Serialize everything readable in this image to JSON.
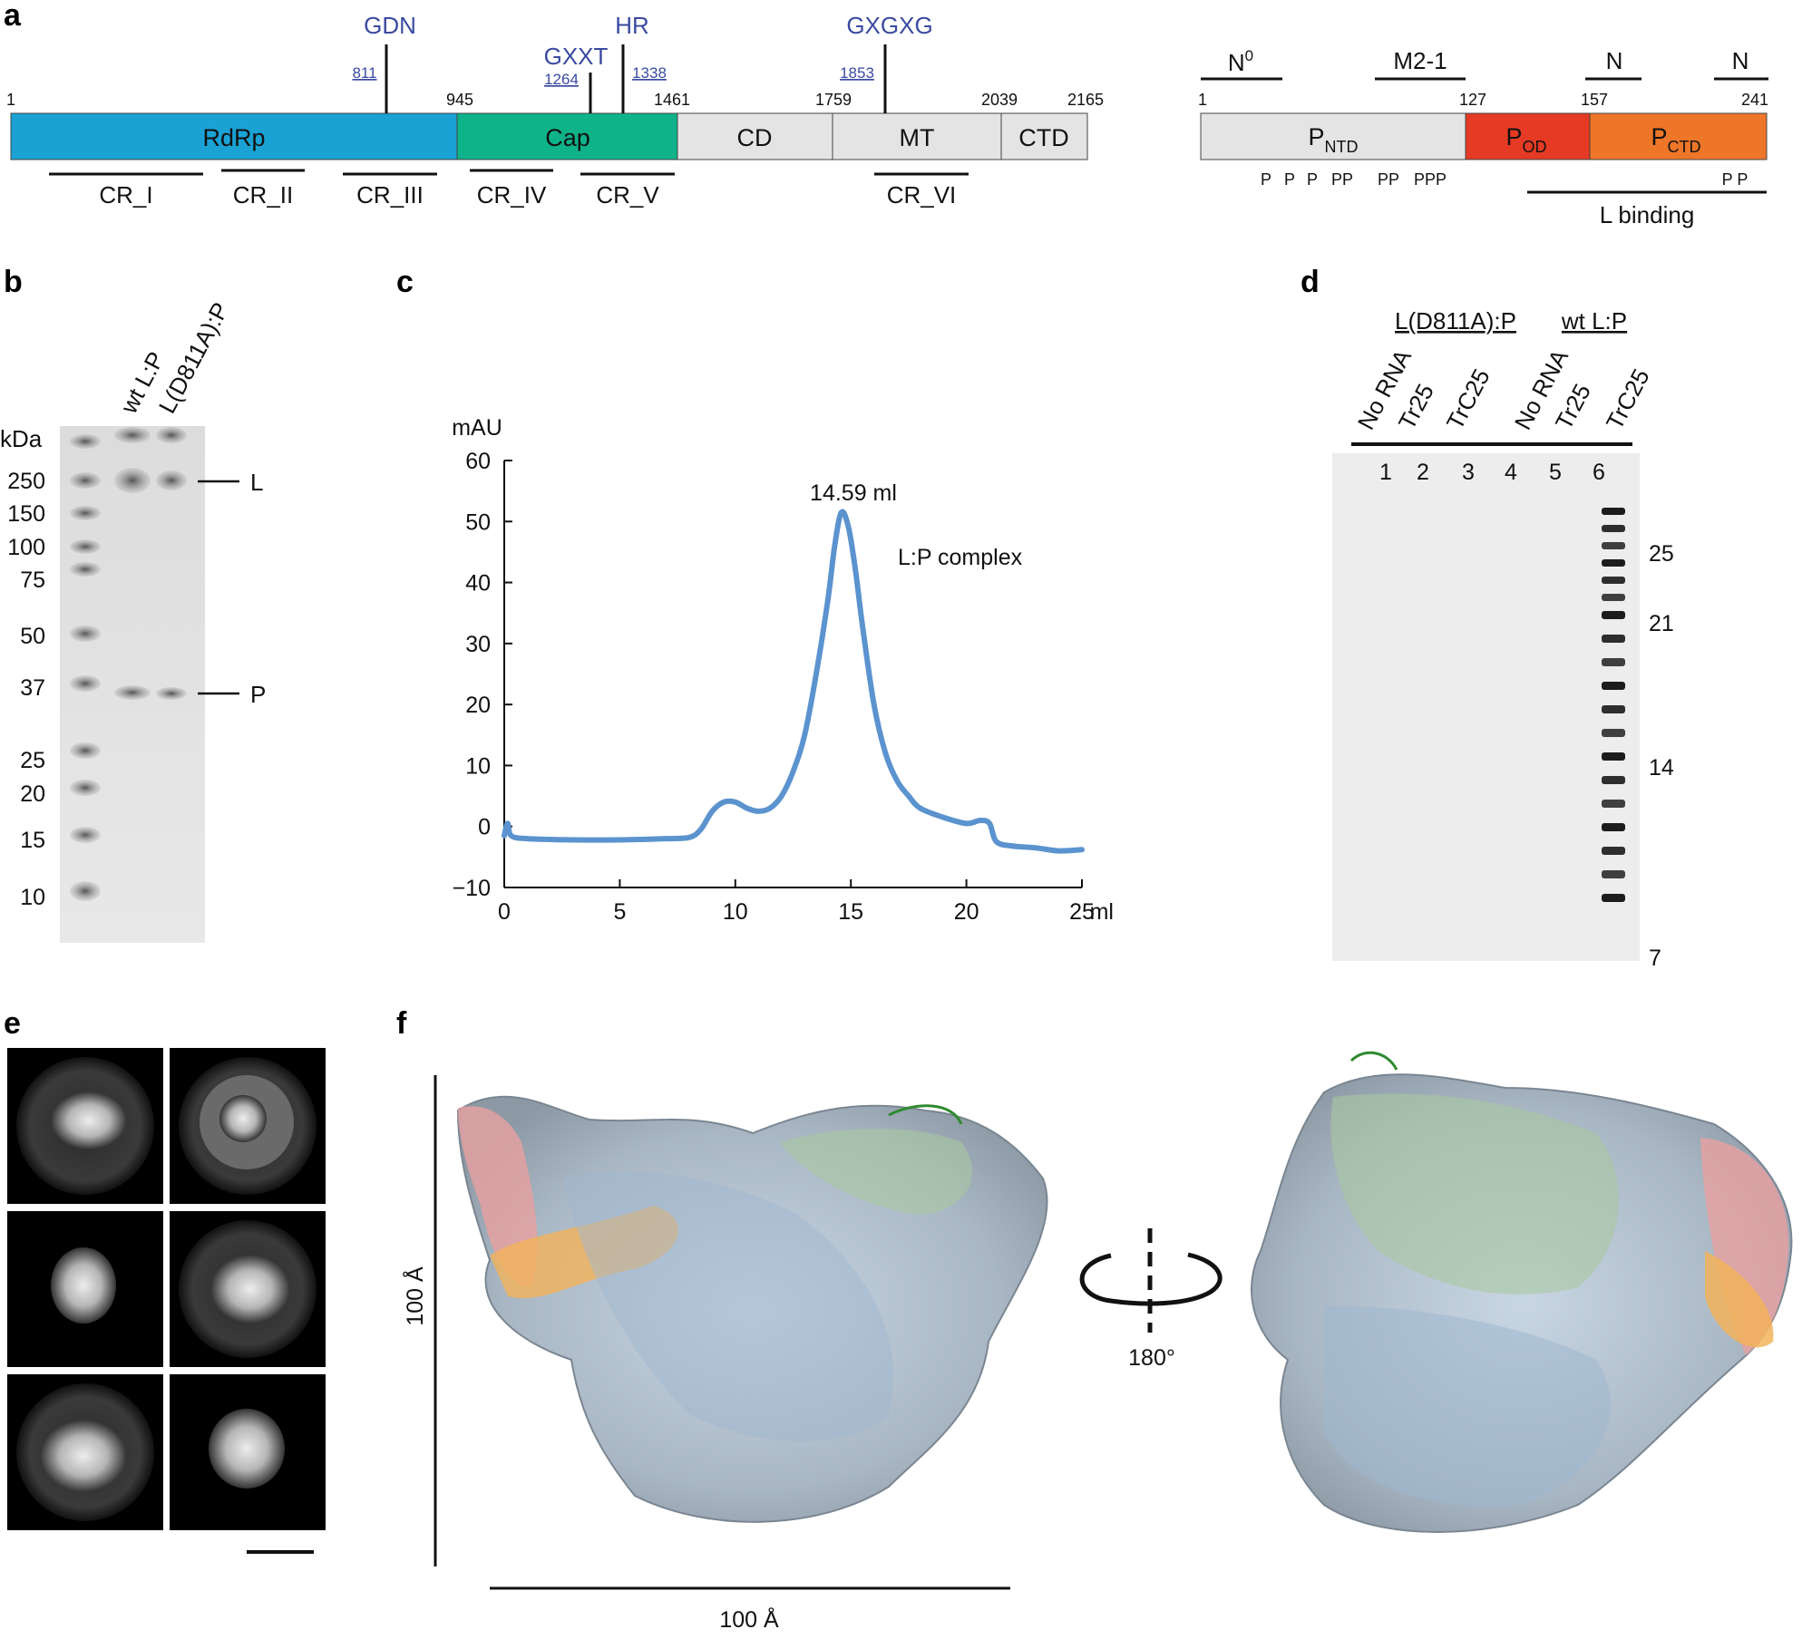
{
  "panel_labels": [
    "a",
    "b",
    "c",
    "d",
    "e",
    "f"
  ],
  "panel_a": {
    "l_protein": {
      "domains": [
        {
          "name": "RdRp",
          "start": 1,
          "end": 945,
          "color": "#1aa2d5"
        },
        {
          "name": "Cap",
          "start": 945,
          "end": 1461,
          "color": "#0fb38a"
        },
        {
          "name": "CD",
          "start": 1461,
          "end": 1759,
          "color": "#e4e4e4"
        },
        {
          "name": "MT",
          "start": 1759,
          "end": 2039,
          "color": "#e4e4e4"
        },
        {
          "name": "CTD",
          "start": 2039,
          "end": 2165,
          "color": "#e4e4e4"
        }
      ],
      "boundaries": [
        "1",
        "945",
        "1461",
        "1759",
        "2039",
        "2165"
      ],
      "motifs": [
        {
          "name": "GDN",
          "pos": "811"
        },
        {
          "name": "GXXT",
          "pos": "1264"
        },
        {
          "name": "HR",
          "pos": "1338"
        },
        {
          "name": "GXGXG",
          "pos": "1853"
        }
      ],
      "conserved_regions": [
        "CR_I",
        "CR_II",
        "CR_III",
        "CR_IV",
        "CR_V",
        "CR_VI"
      ]
    },
    "p_protein": {
      "domains": [
        {
          "name": "P",
          "sub": "NTD",
          "start": 1,
          "end": 127,
          "color": "#e4e4e4"
        },
        {
          "name": "P",
          "sub": "OD",
          "start": 127,
          "end": 157,
          "color": "#e53a24"
        },
        {
          "name": "P",
          "sub": "CTD",
          "start": 157,
          "end": 241,
          "color": "#ee7628"
        }
      ],
      "boundaries": [
        "1",
        "127",
        "157",
        "241"
      ],
      "binding_regions": [
        {
          "name": "N",
          "sup": "0"
        },
        {
          "name": "M2-1",
          "sup": ""
        },
        {
          "name": "N",
          "sup": ""
        },
        {
          "name": "N",
          "sup": ""
        }
      ],
      "phospho_groups": [
        "P",
        "P",
        "P",
        "PP",
        "PP",
        "PPP",
        "P P"
      ],
      "l_binding_label": "L binding"
    }
  },
  "panel_b": {
    "unit": "kDa",
    "lanes": [
      "wt L:P",
      "L(D811A):P"
    ],
    "markers": [
      "250",
      "150",
      "100",
      "75",
      "50",
      "37",
      "25",
      "20",
      "15",
      "10"
    ],
    "band_labels": [
      "L",
      "P"
    ]
  },
  "panel_c": {
    "chart_data": {
      "type": "line",
      "xlabel": "ml",
      "ylabel": "mAU",
      "xlim": [
        0,
        25
      ],
      "ylim": [
        -10,
        60
      ],
      "xticks": [
        0,
        5,
        10,
        15,
        20,
        25
      ],
      "yticks": [
        -10,
        0,
        10,
        20,
        30,
        40,
        50,
        60
      ],
      "annotations": [
        "14.59 ml",
        "L:P complex"
      ],
      "line_color": "#5b93cf",
      "x": [
        0,
        0.15,
        0.3,
        1,
        3,
        5,
        7,
        8,
        8.5,
        9,
        9.5,
        10,
        10.5,
        11,
        11.5,
        12,
        12.5,
        13,
        13.5,
        14,
        14.3,
        14.59,
        14.9,
        15.2,
        15.5,
        16,
        16.5,
        17,
        17.5,
        18,
        19,
        20,
        20.6,
        21,
        21.3,
        22,
        23,
        24,
        25
      ],
      "y": [
        -1.5,
        0.5,
        -1.5,
        -2,
        -2.2,
        -2.2,
        -2.0,
        -1.8,
        -0.5,
        2.5,
        4,
        4,
        3,
        2.5,
        3,
        5,
        9,
        15,
        25,
        37,
        46,
        51.5,
        49,
        42,
        33,
        20,
        12,
        7.5,
        5,
        3,
        1.5,
        0.5,
        1,
        0.5,
        -2.5,
        -3.2,
        -3.5,
        -4,
        -3.8
      ]
    }
  },
  "panel_d": {
    "groups": [
      "L(D811A):P",
      "wt L:P"
    ],
    "lanes": [
      "No RNA",
      "Tr25",
      "TrC25",
      "No RNA",
      "Tr25",
      "TrC25"
    ],
    "lane_numbers": [
      "1",
      "2",
      "3",
      "4",
      "5",
      "6"
    ],
    "size_markers": [
      "25",
      "21",
      "14",
      "7"
    ]
  },
  "panel_e": {
    "class_count": 6
  },
  "panel_f": {
    "vertical_scale": "100 Å",
    "horizontal_scale": "100 Å",
    "rotation": "180°"
  }
}
